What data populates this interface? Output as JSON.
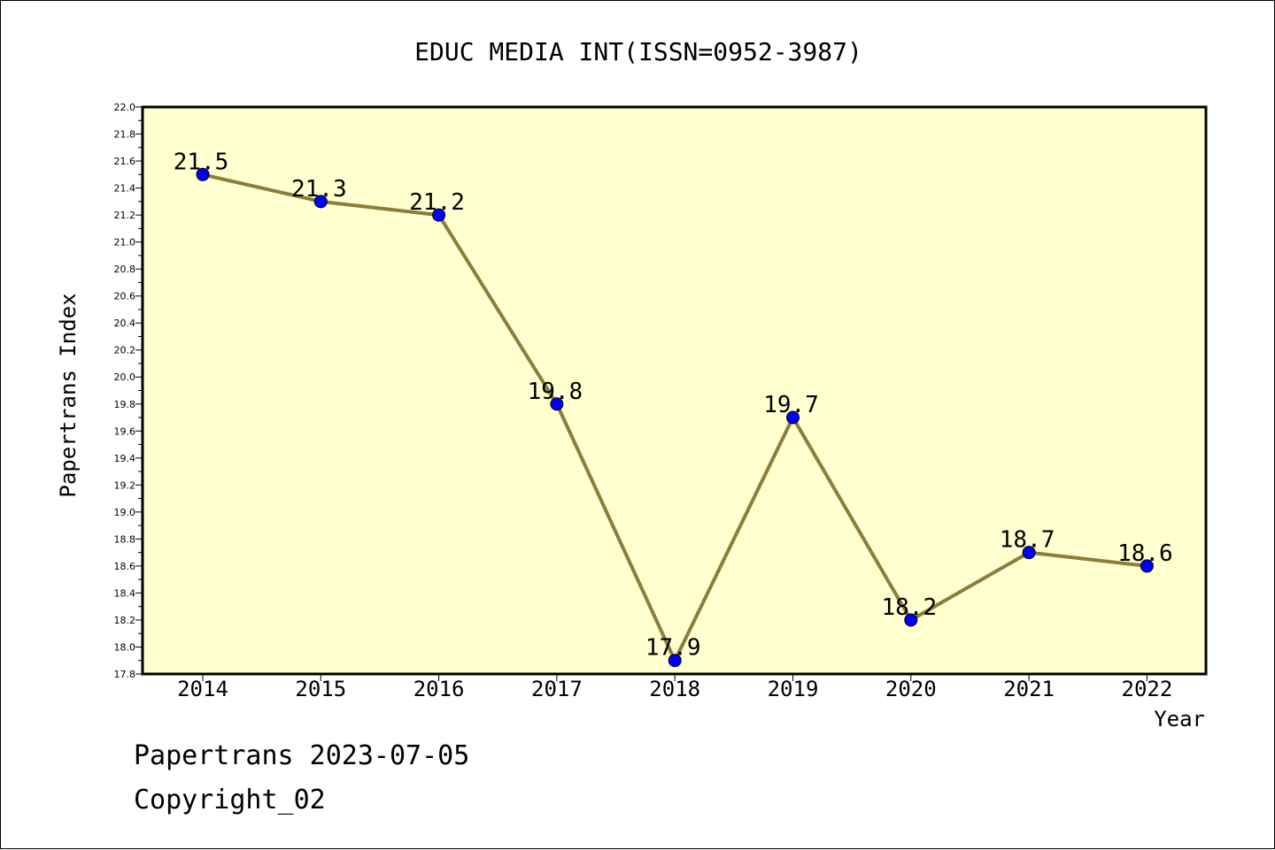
{
  "footer": {
    "line1": "Papertrans 2023-07-05",
    "line2": "Copyright_02"
  },
  "colors": {
    "plot_background": "#ffffd0",
    "line": "#8b7d3a",
    "marker": "#0000ff",
    "axis": "#000000"
  },
  "chart_data": {
    "type": "line",
    "title": "EDUC MEDIA INT(ISSN=0952-3987)",
    "xlabel": "Year",
    "ylabel": "Papertrans Index",
    "categories": [
      "2014",
      "2015",
      "2016",
      "2017",
      "2018",
      "2019",
      "2020",
      "2021",
      "2022"
    ],
    "series": [
      {
        "values": [
          21.5,
          21.3,
          21.2,
          19.8,
          17.9,
          19.7,
          18.2,
          18.7,
          18.6
        ],
        "data_labels": [
          "21.5",
          "21.3",
          "21.2",
          "19.8",
          "17.9",
          "19.7",
          "18.2",
          "18.7",
          "18.6"
        ]
      }
    ],
    "ylim": [
      17.8,
      22.0
    ],
    "yticks": [
      "17.8",
      "18.0",
      "18.2",
      "18.4",
      "18.6",
      "18.8",
      "19.0",
      "19.2",
      "19.4",
      "19.6",
      "19.8",
      "20.0",
      "20.2",
      "20.4",
      "20.6",
      "20.8",
      "21.0",
      "21.2",
      "21.4",
      "21.6",
      "21.8",
      "22.0"
    ],
    "grid": false,
    "legend": "none"
  }
}
